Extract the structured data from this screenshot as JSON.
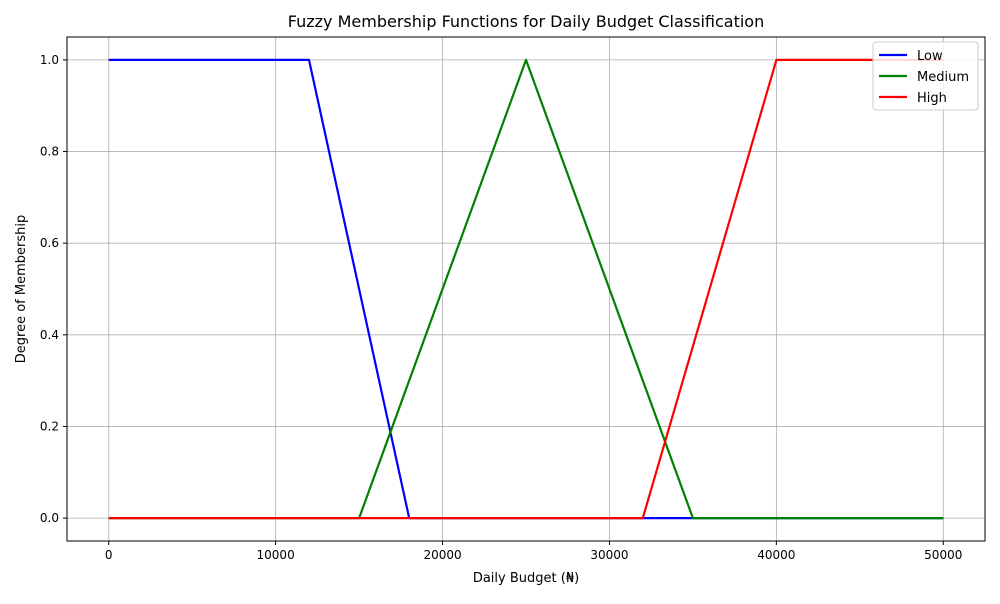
{
  "chart_data": {
    "type": "line",
    "title": "Fuzzy Membership Functions for Daily Budget Classification",
    "xlabel": "Daily Budget (₦)",
    "ylabel": "Degree of Membership",
    "xlim": [
      -2500,
      52500
    ],
    "ylim": [
      -0.05,
      1.05
    ],
    "xticks": [
      0,
      10000,
      20000,
      30000,
      40000,
      50000
    ],
    "yticks": [
      0.0,
      0.2,
      0.4,
      0.6,
      0.8,
      1.0
    ],
    "xtick_labels": [
      "0",
      "10000",
      "20000",
      "30000",
      "40000",
      "50000"
    ],
    "ytick_labels": [
      "0.0",
      "0.2",
      "0.4",
      "0.6",
      "0.8",
      "1.0"
    ],
    "grid": true,
    "legend_position": "top-right",
    "series": [
      {
        "name": "Low",
        "color": "#0000ff",
        "x": [
          0,
          12000,
          18000,
          50000
        ],
        "y": [
          1,
          1,
          0,
          0
        ]
      },
      {
        "name": "Medium",
        "color": "#008000",
        "x": [
          0,
          15000,
          25000,
          35000,
          50000
        ],
        "y": [
          0,
          0,
          1,
          0,
          0
        ]
      },
      {
        "name": "High",
        "color": "#ff0000",
        "x": [
          0,
          32000,
          40000,
          50000
        ],
        "y": [
          0,
          0,
          1,
          1
        ]
      }
    ]
  }
}
